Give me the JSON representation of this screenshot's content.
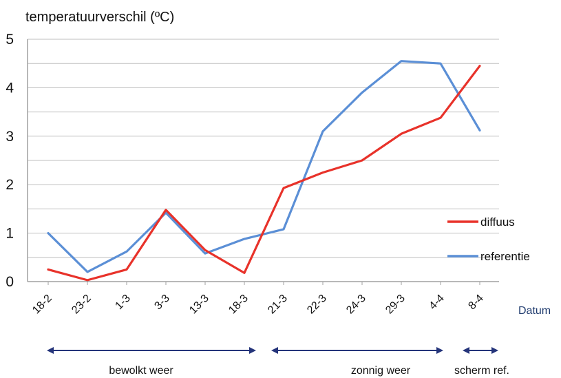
{
  "chart_data": {
    "type": "line",
    "ylabel": "temperatuurverschil (ºC)",
    "xlabel": "Datum",
    "categories": [
      "18-2",
      "23-2",
      "1-3",
      "3-3",
      "13-3",
      "18-3",
      "21-3",
      "22-3",
      "24-3",
      "29-3",
      "4-4",
      "8-4"
    ],
    "ylim": [
      0,
      5
    ],
    "yticks": [
      "0",
      "1",
      "2",
      "3",
      "4",
      "5"
    ],
    "grid": true,
    "legend_position": "right",
    "series": [
      {
        "name": "diffuus",
        "color": "#e8322a",
        "values": [
          0.25,
          0.03,
          0.25,
          1.48,
          0.65,
          0.18,
          1.93,
          2.25,
          2.5,
          3.05,
          3.38,
          4.45
        ]
      },
      {
        "name": "referentie",
        "color": "#5b8fd6",
        "values": [
          1.0,
          0.2,
          0.62,
          1.42,
          0.58,
          0.88,
          1.08,
          3.1,
          3.9,
          4.55,
          4.5,
          3.12
        ]
      }
    ],
    "periods": [
      {
        "label": "bewolkt weer"
      },
      {
        "label": "zonnig weer"
      },
      {
        "label": "scherm ref."
      }
    ],
    "arrow_color": "#24347a",
    "grid_color": "#bfbfbf",
    "axis_color": "#a0a0a0"
  }
}
